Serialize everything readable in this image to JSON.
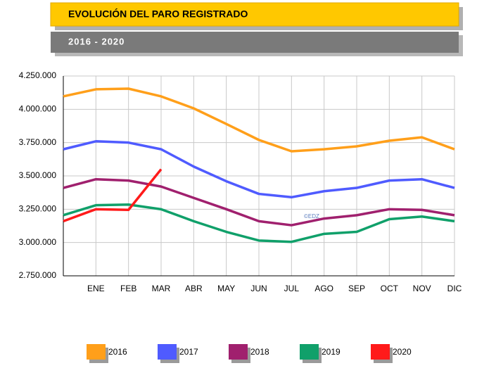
{
  "chart_data": {
    "type": "line",
    "title": "EVOLUCIÓN DEL PARO REGISTRADO",
    "subtitle": "2016 - 2020",
    "watermark": "©EDZ",
    "categories": [
      null,
      "ENE",
      "FEB",
      "MAR",
      "ABR",
      "MAY",
      "JUN",
      "JUL",
      "AGO",
      "SEP",
      "OCT",
      "NOV",
      "DIC"
    ],
    "series": [
      {
        "name": "2016",
        "color": "#ff9f1a",
        "values": [
          4097000,
          4150000,
          4155000,
          4097000,
          4007000,
          3890000,
          3770000,
          3685000,
          3700000,
          3722000,
          3764000,
          3790000,
          3700000
        ]
      },
      {
        "name": "2017",
        "color": "#4f5bff",
        "values": [
          3700000,
          3760000,
          3750000,
          3700000,
          3570000,
          3460000,
          3365000,
          3340000,
          3385000,
          3410000,
          3465000,
          3475000,
          3410000
        ]
      },
      {
        "name": "2018",
        "color": "#a0206e",
        "values": [
          3410000,
          3475000,
          3465000,
          3420000,
          3335000,
          3250000,
          3160000,
          3130000,
          3180000,
          3205000,
          3250000,
          3245000,
          3205000
        ]
      },
      {
        "name": "2019",
        "color": "#10a06a",
        "values": [
          3205000,
          3280000,
          3285000,
          3250000,
          3160000,
          3080000,
          3015000,
          3005000,
          3065000,
          3080000,
          3175000,
          3195000,
          3160000
        ]
      },
      {
        "name": "2020",
        "color": "#ff1a1a",
        "values": [
          3160000,
          3250000,
          3245000,
          3550000,
          null,
          null,
          null,
          null,
          null,
          null,
          null,
          null,
          null
        ]
      }
    ],
    "ylim": [
      2750000,
      4250000
    ],
    "yticks": [
      {
        "value": 2750000,
        "label": "2.750.000"
      },
      {
        "value": 3000000,
        "label": "3.000.000"
      },
      {
        "value": 3250000,
        "label": "3.250.000"
      },
      {
        "value": 3500000,
        "label": "3.500.000"
      },
      {
        "value": 3750000,
        "label": "3.750.000"
      },
      {
        "value": 4000000,
        "label": "4.000.000"
      },
      {
        "value": 4250000,
        "label": "4.250.000"
      }
    ],
    "grid": true,
    "legend": "bottom"
  }
}
